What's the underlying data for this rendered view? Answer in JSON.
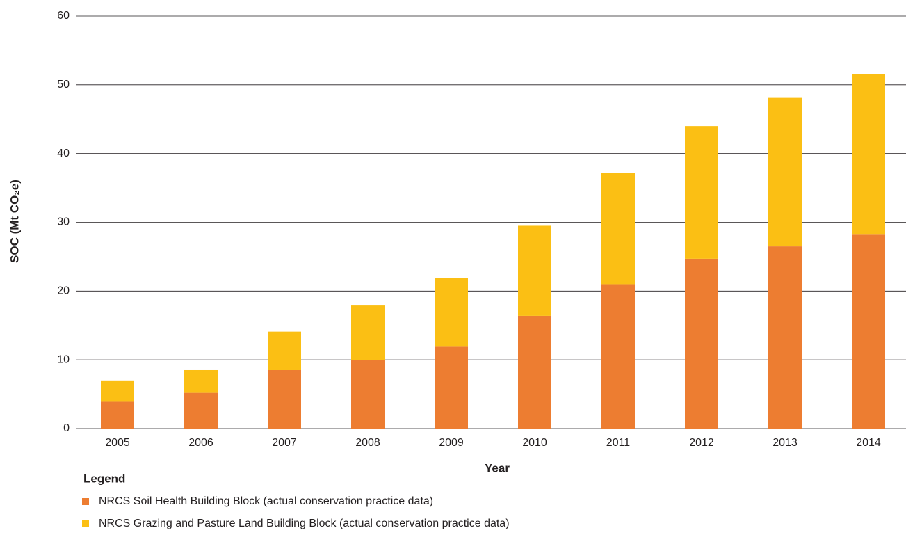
{
  "chart_data": {
    "type": "stacked_bar",
    "x_label": "Year",
    "y_label": "SOC (Mt CO₂e)",
    "legend_title": "Legend",
    "categories": [
      "2005",
      "2006",
      "2007",
      "2008",
      "2009",
      "2010",
      "2011",
      "2012",
      "2013",
      "2014"
    ],
    "series": [
      {
        "name": "NRCS Soil Health Building Block (actual conservation practice data)",
        "color": "#ed7d31",
        "values": [
          3.9,
          5.2,
          8.5,
          10.0,
          11.9,
          16.4,
          21.0,
          24.7,
          26.5,
          28.2
        ]
      },
      {
        "name": "NRCS Grazing and Pasture Land Building Block (actual conservation practice data)",
        "color": "#fbbf14",
        "values": [
          3.1,
          3.3,
          5.6,
          7.9,
          10.0,
          13.1,
          16.2,
          19.3,
          21.6,
          23.4
        ]
      }
    ],
    "ylim": [
      0,
      60
    ],
    "yticks": [
      0,
      10,
      20,
      30,
      40,
      50,
      60
    ],
    "grid": true
  }
}
